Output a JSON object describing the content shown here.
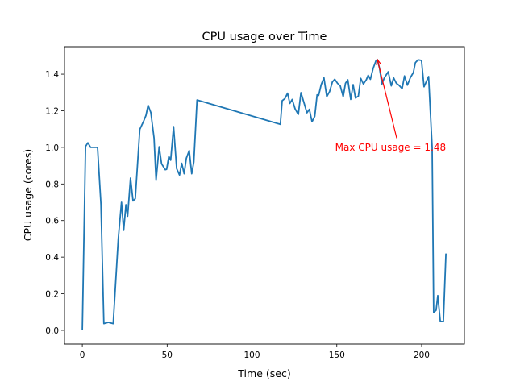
{
  "chart_data": {
    "type": "line",
    "title": "CPU usage over Time",
    "xlabel": "Time (sec)",
    "ylabel": "CPU usage (cores)",
    "xlim": [
      -10.5,
      225.2
    ],
    "ylim": [
      -0.075,
      1.55
    ],
    "xticks": [
      0,
      50,
      100,
      150,
      200
    ],
    "xtick_labels": [
      "0",
      "50",
      "100",
      "150",
      "200"
    ],
    "yticks": [
      0.0,
      0.2,
      0.4,
      0.6,
      0.8,
      1.0,
      1.2,
      1.4
    ],
    "ytick_labels": [
      "0.0",
      "0.2",
      "0.4",
      "0.6",
      "0.8",
      "1.0",
      "1.2",
      "1.4"
    ],
    "grid": false,
    "line_color": "#1f77b4",
    "series": [
      {
        "name": "CPU usage",
        "x": [
          0,
          1.9,
          3.3,
          4.9,
          9,
          11,
          12.7,
          15.3,
          18.2,
          21.2,
          23.1,
          24.4,
          25.7,
          26.7,
          28.4,
          29.9,
          31.2,
          33.9,
          36.2,
          37.5,
          38.8,
          40.4,
          42.3,
          43.5,
          45.3,
          46.7,
          48.9,
          49.7,
          51,
          52.1,
          53.8,
          55.6,
          57.3,
          58.6,
          60,
          61.3,
          63,
          64.5,
          65.7,
          67.6,
          116.7,
          117.8,
          119.4,
          121,
          122.3,
          123.7,
          125.4,
          127.3,
          128.9,
          130.8,
          132.4,
          133.8,
          135.4,
          137,
          138.4,
          139.3,
          140.8,
          142.4,
          144.1,
          145.8,
          147.4,
          148.8,
          150.4,
          152,
          153.8,
          155.1,
          156.5,
          158.2,
          159.6,
          161,
          162.7,
          164.1,
          165.7,
          167.4,
          168.5,
          169.8,
          171.4,
          173,
          173.9,
          175.2,
          176.6,
          178,
          180.3,
          182.1,
          183.5,
          185.1,
          186.6,
          188.5,
          189.9,
          191.6,
          193.3,
          195.1,
          196.3,
          197.9,
          199.9,
          201.4,
          204.1,
          206.2,
          207.1,
          208.5,
          209.5,
          211,
          212.8,
          214.3
        ],
        "y": [
          0,
          1.005,
          1.025,
          1.0,
          1.0,
          0.69,
          0.037,
          0.044,
          0.037,
          0.5,
          0.7,
          0.547,
          0.687,
          0.624,
          0.832,
          0.707,
          0.72,
          1.098,
          1.145,
          1.174,
          1.23,
          1.19,
          1.05,
          0.82,
          1.003,
          0.91,
          0.878,
          0.88,
          0.95,
          0.93,
          1.113,
          0.884,
          0.849,
          0.913,
          0.856,
          0.94,
          0.983,
          0.856,
          0.92,
          1.259,
          1.126,
          1.255,
          1.267,
          1.296,
          1.24,
          1.262,
          1.211,
          1.18,
          1.299,
          1.24,
          1.189,
          1.208,
          1.14,
          1.17,
          1.287,
          1.284,
          1.343,
          1.38,
          1.277,
          1.306,
          1.358,
          1.372,
          1.35,
          1.336,
          1.277,
          1.35,
          1.369,
          1.262,
          1.343,
          1.27,
          1.28,
          1.377,
          1.346,
          1.37,
          1.394,
          1.372,
          1.431,
          1.472,
          1.48,
          1.431,
          1.346,
          1.38,
          1.413,
          1.336,
          1.38,
          1.35,
          1.34,
          1.321,
          1.39,
          1.34,
          1.38,
          1.409,
          1.463,
          1.478,
          1.475,
          1.331,
          1.387,
          1.0,
          0.097,
          0.11,
          0.19,
          0.05,
          0.048,
          0.42
        ]
      }
    ],
    "annotation": {
      "text": "Max CPU usage = 1.48",
      "color": "#ff0000",
      "point": [
        173.9,
        1.48
      ],
      "text_pos": [
        149,
        1.0
      ],
      "arrow_start": [
        185.3,
        1.05
      ]
    }
  }
}
